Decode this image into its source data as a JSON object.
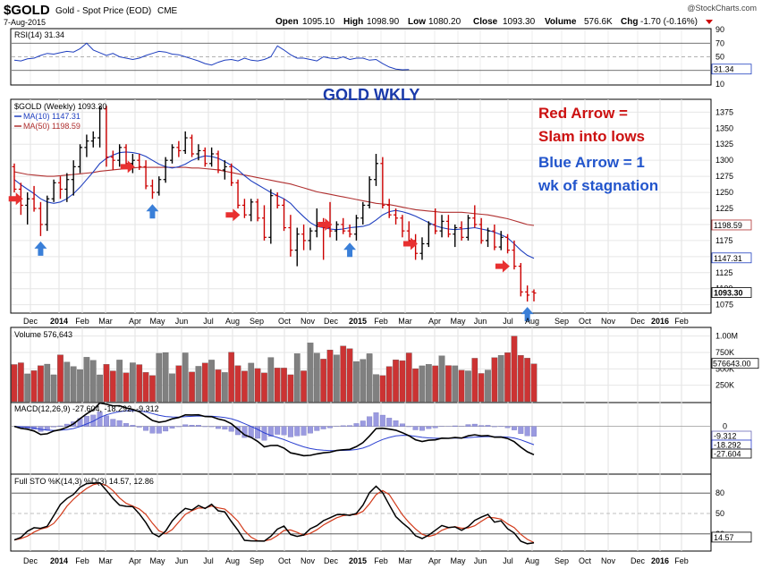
{
  "header": {
    "symbol": "$GOLD",
    "name": "Gold - Spot Price (EOD)",
    "exchange": "CME",
    "date": "7-Aug-2015",
    "watermark": "@StockCharts.com",
    "quote": {
      "open_label": "Open",
      "open": "1095.10",
      "high_label": "High",
      "high": "1098.90",
      "low_label": "Low",
      "low": "1080.20",
      "close_label": "Close",
      "close": "1093.30",
      "volume_label": "Volume",
      "volume": "576.6K",
      "chg_label": "Chg",
      "chg": "-1.70 (-0.16%)"
    }
  },
  "annotations": {
    "title": "GOLD WKLY",
    "red_line1": "Red Arrow =",
    "red_line2": "Slam into lows",
    "blue_line1": "Blue Arrow = 1",
    "blue_line2": "wk of stagnation"
  },
  "colors": {
    "bar_up": "#000000",
    "bar_down": "#cc0000",
    "ma10": "#1f3fbf",
    "ma50": "#b03030",
    "volume_up": "#808080",
    "volume_down": "#cc3333",
    "red_arrow": "#e83030",
    "blue_arrow": "#3a7fd8",
    "annotation_red": "#cc1111",
    "annotation_blue": "#2255cc",
    "title_blue": "#1a3aaa"
  },
  "chart_data": {
    "type": "line",
    "x_axis": {
      "labels": [
        "Dec",
        "2014",
        "Feb",
        "Mar",
        "Apr",
        "May",
        "Jun",
        "Jul",
        "Aug",
        "Sep",
        "Oct",
        "Nov",
        "Dec",
        "2015",
        "Feb",
        "Mar",
        "Apr",
        "May",
        "Jun",
        "Jul",
        "Aug",
        "Sep",
        "Oct",
        "Nov",
        "Dec",
        "2016",
        "Feb"
      ],
      "bold": [
        "2014",
        "2015",
        "2016"
      ]
    },
    "rsi": {
      "label": "RSI(14) 31.34",
      "value_tag": "31.34",
      "ticks": [
        "90",
        "70",
        "50",
        "30",
        "10"
      ],
      "range": [
        10,
        90
      ],
      "values": [
        45,
        44,
        47,
        48,
        52,
        55,
        54,
        56,
        58,
        57,
        62,
        70,
        60,
        56,
        52,
        55,
        50,
        48,
        46,
        48,
        52,
        55,
        58,
        57,
        54,
        53,
        50,
        47,
        44,
        40,
        38,
        42,
        45,
        46,
        44,
        48,
        45,
        44,
        46,
        50,
        66,
        60,
        53,
        48,
        48,
        46,
        44,
        50,
        48,
        47,
        50,
        46,
        48,
        48,
        45,
        46,
        40,
        35,
        32,
        31,
        31.34
      ]
    },
    "price": {
      "label": "$GOLD (Weekly) 1093.30",
      "ma10_label": "MA(10) 1147.31",
      "ma50_label": "MA(50) 1198.59",
      "ticks": [
        "1375",
        "1350",
        "1325",
        "1300",
        "1275",
        "1250",
        "1225",
        "1200",
        "1175",
        "1150",
        "1125",
        "1100",
        "1075"
      ],
      "range": [
        1062,
        1395
      ],
      "price_tag": "1093.30",
      "ma10_tag": "1147.31",
      "ma50_tag": "1198.59",
      "bars": [
        {
          "o": 1290,
          "h": 1295,
          "l": 1250,
          "c": 1255
        },
        {
          "o": 1255,
          "h": 1265,
          "l": 1215,
          "c": 1230
        },
        {
          "o": 1230,
          "h": 1250,
          "l": 1200,
          "c": 1240
        },
        {
          "o": 1240,
          "h": 1260,
          "l": 1220,
          "c": 1225
        },
        {
          "o": 1225,
          "h": 1235,
          "l": 1182,
          "c": 1200
        },
        {
          "o": 1200,
          "h": 1245,
          "l": 1190,
          "c": 1240
        },
        {
          "o": 1240,
          "h": 1270,
          "l": 1235,
          "c": 1265
        },
        {
          "o": 1265,
          "h": 1275,
          "l": 1240,
          "c": 1255
        },
        {
          "o": 1255,
          "h": 1280,
          "l": 1235,
          "c": 1270
        },
        {
          "o": 1270,
          "h": 1300,
          "l": 1245,
          "c": 1290
        },
        {
          "o": 1290,
          "h": 1325,
          "l": 1280,
          "c": 1320
        },
        {
          "o": 1320,
          "h": 1340,
          "l": 1305,
          "c": 1330
        },
        {
          "o": 1330,
          "h": 1345,
          "l": 1320,
          "c": 1335
        },
        {
          "o": 1335,
          "h": 1385,
          "l": 1320,
          "c": 1380
        },
        {
          "o": 1380,
          "h": 1385,
          "l": 1290,
          "c": 1305
        },
        {
          "o": 1305,
          "h": 1315,
          "l": 1285,
          "c": 1300
        },
        {
          "o": 1300,
          "h": 1325,
          "l": 1290,
          "c": 1320
        },
        {
          "o": 1320,
          "h": 1325,
          "l": 1290,
          "c": 1295
        },
        {
          "o": 1295,
          "h": 1310,
          "l": 1280,
          "c": 1300
        },
        {
          "o": 1300,
          "h": 1310,
          "l": 1285,
          "c": 1290
        },
        {
          "o": 1290,
          "h": 1300,
          "l": 1255,
          "c": 1260
        },
        {
          "o": 1260,
          "h": 1270,
          "l": 1240,
          "c": 1250
        },
        {
          "o": 1250,
          "h": 1275,
          "l": 1245,
          "c": 1270
        },
        {
          "o": 1270,
          "h": 1305,
          "l": 1265,
          "c": 1300
        },
        {
          "o": 1300,
          "h": 1325,
          "l": 1295,
          "c": 1320
        },
        {
          "o": 1320,
          "h": 1330,
          "l": 1305,
          "c": 1315
        },
        {
          "o": 1315,
          "h": 1345,
          "l": 1310,
          "c": 1335
        },
        {
          "o": 1335,
          "h": 1340,
          "l": 1305,
          "c": 1310
        },
        {
          "o": 1310,
          "h": 1325,
          "l": 1300,
          "c": 1315
        },
        {
          "o": 1315,
          "h": 1320,
          "l": 1290,
          "c": 1295
        },
        {
          "o": 1295,
          "h": 1320,
          "l": 1290,
          "c": 1310
        },
        {
          "o": 1310,
          "h": 1315,
          "l": 1280,
          "c": 1285
        },
        {
          "o": 1285,
          "h": 1300,
          "l": 1270,
          "c": 1290
        },
        {
          "o": 1290,
          "h": 1295,
          "l": 1260,
          "c": 1265
        },
        {
          "o": 1265,
          "h": 1270,
          "l": 1225,
          "c": 1230
        },
        {
          "o": 1230,
          "h": 1240,
          "l": 1210,
          "c": 1215
        },
        {
          "o": 1215,
          "h": 1240,
          "l": 1205,
          "c": 1235
        },
        {
          "o": 1235,
          "h": 1240,
          "l": 1205,
          "c": 1210
        },
        {
          "o": 1210,
          "h": 1230,
          "l": 1175,
          "c": 1180
        },
        {
          "o": 1180,
          "h": 1255,
          "l": 1170,
          "c": 1245
        },
        {
          "o": 1245,
          "h": 1250,
          "l": 1225,
          "c": 1230
        },
        {
          "o": 1230,
          "h": 1240,
          "l": 1190,
          "c": 1195
        },
        {
          "o": 1195,
          "h": 1215,
          "l": 1150,
          "c": 1160
        },
        {
          "o": 1160,
          "h": 1195,
          "l": 1135,
          "c": 1185
        },
        {
          "o": 1185,
          "h": 1200,
          "l": 1160,
          "c": 1175
        },
        {
          "o": 1175,
          "h": 1195,
          "l": 1160,
          "c": 1190
        },
        {
          "o": 1190,
          "h": 1225,
          "l": 1180,
          "c": 1200
        },
        {
          "o": 1200,
          "h": 1210,
          "l": 1145,
          "c": 1195
        },
        {
          "o": 1195,
          "h": 1235,
          "l": 1180,
          "c": 1190
        },
        {
          "o": 1190,
          "h": 1205,
          "l": 1175,
          "c": 1200
        },
        {
          "o": 1200,
          "h": 1210,
          "l": 1185,
          "c": 1190
        },
        {
          "o": 1190,
          "h": 1200,
          "l": 1180,
          "c": 1185
        },
        {
          "o": 1185,
          "h": 1215,
          "l": 1175,
          "c": 1210
        },
        {
          "o": 1210,
          "h": 1235,
          "l": 1200,
          "c": 1230
        },
        {
          "o": 1230,
          "h": 1275,
          "l": 1225,
          "c": 1270
        },
        {
          "o": 1270,
          "h": 1310,
          "l": 1260,
          "c": 1295
        },
        {
          "o": 1295,
          "h": 1305,
          "l": 1225,
          "c": 1230
        },
        {
          "o": 1230,
          "h": 1240,
          "l": 1210,
          "c": 1215
        },
        {
          "o": 1215,
          "h": 1225,
          "l": 1200,
          "c": 1210
        },
        {
          "o": 1210,
          "h": 1215,
          "l": 1180,
          "c": 1190
        },
        {
          "o": 1190,
          "h": 1205,
          "l": 1170,
          "c": 1175
        },
        {
          "o": 1175,
          "h": 1185,
          "l": 1145,
          "c": 1155
        },
        {
          "o": 1155,
          "h": 1180,
          "l": 1145,
          "c": 1170
        },
        {
          "o": 1170,
          "h": 1205,
          "l": 1165,
          "c": 1200
        },
        {
          "o": 1200,
          "h": 1225,
          "l": 1185,
          "c": 1190
        },
        {
          "o": 1190,
          "h": 1215,
          "l": 1180,
          "c": 1205
        },
        {
          "o": 1205,
          "h": 1215,
          "l": 1180,
          "c": 1185
        },
        {
          "o": 1185,
          "h": 1200,
          "l": 1165,
          "c": 1195
        },
        {
          "o": 1195,
          "h": 1205,
          "l": 1175,
          "c": 1180
        },
        {
          "o": 1180,
          "h": 1215,
          "l": 1175,
          "c": 1210
        },
        {
          "o": 1210,
          "h": 1230,
          "l": 1195,
          "c": 1200
        },
        {
          "o": 1200,
          "h": 1210,
          "l": 1170,
          "c": 1175
        },
        {
          "o": 1175,
          "h": 1195,
          "l": 1165,
          "c": 1190
        },
        {
          "o": 1190,
          "h": 1200,
          "l": 1160,
          "c": 1165
        },
        {
          "o": 1165,
          "h": 1190,
          "l": 1160,
          "c": 1180
        },
        {
          "o": 1180,
          "h": 1185,
          "l": 1155,
          "c": 1160
        },
        {
          "o": 1160,
          "h": 1175,
          "l": 1130,
          "c": 1135
        },
        {
          "o": 1135,
          "h": 1140,
          "l": 1088,
          "c": 1095
        },
        {
          "o": 1095,
          "h": 1105,
          "l": 1080,
          "c": 1090
        },
        {
          "o": 1095.1,
          "h": 1098.9,
          "l": 1080.2,
          "c": 1093.3
        }
      ],
      "ma10": [
        1270,
        1262,
        1255,
        1248,
        1240,
        1235,
        1233,
        1235,
        1240,
        1248,
        1258,
        1270,
        1282,
        1295,
        1303,
        1308,
        1312,
        1313,
        1312,
        1310,
        1306,
        1300,
        1294,
        1290,
        1288,
        1290,
        1294,
        1300,
        1304,
        1307,
        1306,
        1303,
        1298,
        1292,
        1285,
        1276,
        1268,
        1262,
        1256,
        1250,
        1245,
        1240,
        1233,
        1222,
        1212,
        1203,
        1197,
        1195,
        1193,
        1192,
        1193,
        1195,
        1196,
        1197,
        1200,
        1207,
        1215,
        1220,
        1222,
        1220,
        1217,
        1213,
        1208,
        1203,
        1198,
        1195,
        1193,
        1192,
        1193,
        1194,
        1195,
        1193,
        1191,
        1188,
        1184,
        1179,
        1170,
        1160,
        1152,
        1147.31
      ],
      "ma50": [
        1282,
        1280,
        1278,
        1277,
        1276,
        1275,
        1275,
        1276,
        1277,
        1278,
        1279,
        1280,
        1281,
        1283,
        1284,
        1285,
        1286,
        1287,
        1288,
        1289,
        1289,
        1289,
        1289,
        1289,
        1289,
        1289,
        1289,
        1288,
        1288,
        1287,
        1286,
        1285,
        1283,
        1281,
        1279,
        1277,
        1275,
        1273,
        1271,
        1269,
        1267,
        1265,
        1263,
        1260,
        1257,
        1254,
        1251,
        1249,
        1247,
        1245,
        1243,
        1241,
        1239,
        1237,
        1235,
        1233,
        1232,
        1231,
        1229,
        1227,
        1225,
        1223,
        1222,
        1221,
        1220,
        1219,
        1219,
        1219,
        1219,
        1218,
        1217,
        1216,
        1215,
        1213,
        1211,
        1209,
        1206,
        1203,
        1200,
        1198.59
      ],
      "red_arrow_bars": [
        2,
        19,
        35,
        49,
        62,
        76
      ],
      "blue_arrow_bars": [
        4,
        21,
        51,
        78
      ]
    },
    "volume": {
      "label": "Volume 576,643",
      "ticks": [
        "1.00M",
        "750K",
        "500K",
        "250K"
      ],
      "value_tag": "576643.00",
      "max": 1050000
    },
    "macd": {
      "label": "MACD(12,26,9) -27.604, -18.292, -9.312",
      "ticks": [
        "0"
      ],
      "range": [
        -45,
        22
      ],
      "tag_hist": "-9.312",
      "tag_signal": "-18.292",
      "tag_macd": "-27.604"
    },
    "sto": {
      "label": "Full STO %K(14,3) %D(3) 14.57, 12.86",
      "ticks": [
        "80",
        "50",
        "20"
      ],
      "value_tag": "14.57"
    }
  }
}
